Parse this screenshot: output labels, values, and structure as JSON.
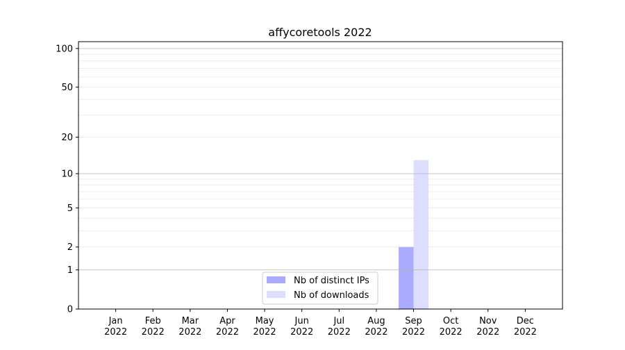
{
  "chart_data": {
    "type": "bar",
    "title": "affycoretools 2022",
    "xlabel": "",
    "ylabel": "",
    "yscale": "symlog",
    "ylim": [
      0,
      113
    ],
    "yticks": [
      0,
      1,
      2,
      5,
      10,
      20,
      50,
      100
    ],
    "grid": true,
    "legend_position": "lower-center",
    "categories": [
      [
        "Jan",
        "2022"
      ],
      [
        "Feb",
        "2022"
      ],
      [
        "Mar",
        "2022"
      ],
      [
        "Apr",
        "2022"
      ],
      [
        "May",
        "2022"
      ],
      [
        "Jun",
        "2022"
      ],
      [
        "Jul",
        "2022"
      ],
      [
        "Aug",
        "2022"
      ],
      [
        "Sep",
        "2022"
      ],
      [
        "Oct",
        "2022"
      ],
      [
        "Nov",
        "2022"
      ],
      [
        "Dec",
        "2022"
      ]
    ],
    "series": [
      {
        "name": "Nb of distinct IPs",
        "color": "#aaaaff",
        "values": [
          0,
          0,
          0,
          0,
          0,
          0,
          0,
          0,
          2,
          0,
          0,
          0
        ]
      },
      {
        "name": "Nb of downloads",
        "color": "#ddddff",
        "values": [
          0,
          0,
          0,
          0,
          0,
          0,
          0,
          0,
          13,
          0,
          0,
          0
        ]
      }
    ]
  }
}
